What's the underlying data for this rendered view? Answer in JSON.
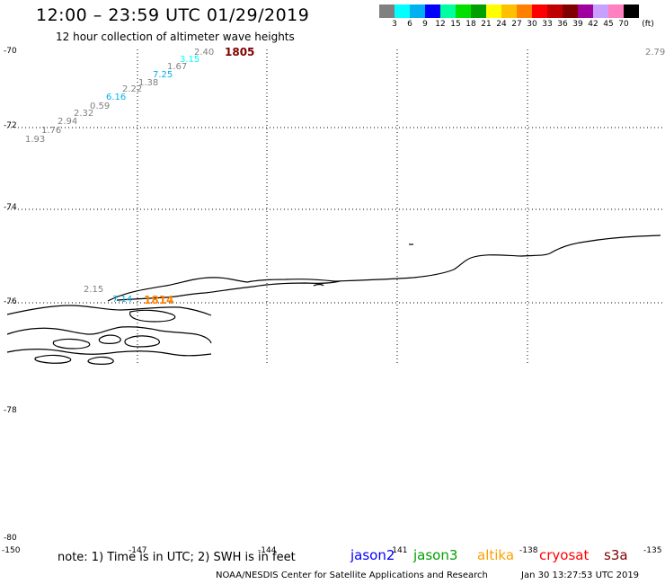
{
  "title": "12:00 – 23:59 UTC 01/29/2019",
  "subtitle": "12 hour collection of altimeter wave heights",
  "colorbar": {
    "unit": "(ft)",
    "colors": [
      "#808080",
      "#00ffff",
      "#00b0f0",
      "#0000ff",
      "#00ffa0",
      "#00e000",
      "#00a000",
      "#ffff00",
      "#ffc000",
      "#ff8000",
      "#ff0000",
      "#c00000",
      "#800000",
      "#a000a0",
      "#c8a0ff",
      "#ff80c0",
      "#000000"
    ],
    "labels": [
      "3",
      "6",
      "9",
      "12",
      "15",
      "18",
      "21",
      "24",
      "27",
      "30",
      "33",
      "36",
      "39",
      "42",
      "45",
      "70"
    ]
  },
  "axes": {
    "lat_labels": [
      "-70",
      "-72",
      "-74",
      "-76",
      "-78",
      "-80"
    ],
    "lon_labels": [
      "-150",
      "-147",
      "-144",
      "-141",
      "-138",
      "-135"
    ]
  },
  "observations": [
    {
      "value": "1.93",
      "color": "#808080"
    },
    {
      "value": "1.76",
      "color": "#808080"
    },
    {
      "value": "2.94",
      "color": "#808080"
    },
    {
      "value": "2.32",
      "color": "#808080"
    },
    {
      "value": "0.59",
      "color": "#808080"
    },
    {
      "value": "6.16",
      "color": "#00b0f0"
    },
    {
      "value": "2.22",
      "color": "#808080"
    },
    {
      "value": "1.38",
      "color": "#808080"
    },
    {
      "value": "7.25",
      "color": "#00b0f0"
    },
    {
      "value": "1.67",
      "color": "#808080"
    },
    {
      "value": "3.15",
      "color": "#00ffff"
    },
    {
      "value": "2.40",
      "color": "#808080"
    },
    {
      "value": "2.79",
      "color": "#808080"
    },
    {
      "value": "2.15",
      "color": "#808080"
    },
    {
      "value": "7.14",
      "color": "#00b0f0"
    }
  ],
  "track_ids": [
    {
      "value": "1805",
      "color": "#800000"
    },
    {
      "value": "1814",
      "color": "#ff8000"
    }
  ],
  "note": "note: 1) Time is in UTC; 2) SWH is in feet",
  "legend": [
    {
      "name": "jason2",
      "color": "#0000ff"
    },
    {
      "name": "jason3",
      "color": "#00a000"
    },
    {
      "name": "altika",
      "color": "#ffa000"
    },
    {
      "name": "cryosat",
      "color": "#ff0000"
    },
    {
      "name": "s3a",
      "color": "#800000"
    }
  ],
  "footer": {
    "credit": "NOAA/NESDIS Center for Satellite Applications and Research",
    "timestamp": "Jan 30 13:27:53 UTC 2019"
  }
}
